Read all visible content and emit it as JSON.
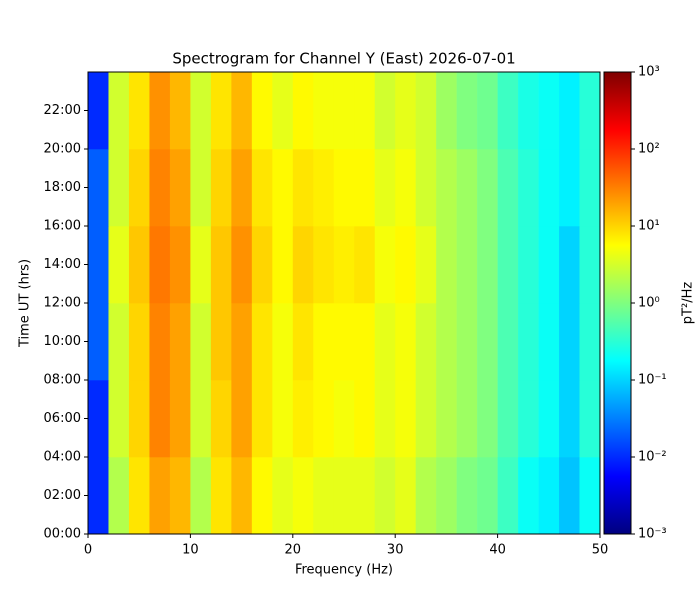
{
  "chart_data": {
    "type": "heatmap",
    "title": "Spectrogram for Channel Y (East) 2026-07-01",
    "x_label": "Frequency (Hz)",
    "y_label": "Time UT (hrs)",
    "colorbar_label": "pT²/Hz",
    "x": [
      1,
      3,
      5,
      7,
      9,
      11,
      13,
      15,
      17,
      19,
      21,
      23,
      25,
      27,
      29,
      31,
      33,
      35,
      37,
      39,
      41,
      43,
      45,
      47,
      49
    ],
    "y": [
      2,
      6,
      10,
      14,
      18,
      22
    ],
    "values": [
      [
        0.01,
        2,
        8,
        20,
        15,
        2,
        8,
        15,
        6,
        4,
        5,
        4,
        4,
        4,
        3,
        4,
        2,
        1.5,
        1,
        0.8,
        0.4,
        0.2,
        0.15,
        0.08,
        0.2
      ],
      [
        0.01,
        3,
        10,
        30,
        20,
        3,
        10,
        20,
        8,
        5,
        7,
        6,
        5,
        6,
        4,
        5,
        3,
        2,
        1.5,
        1,
        0.5,
        0.3,
        0.2,
        0.1,
        0.3
      ],
      [
        0.02,
        3,
        10,
        30,
        20,
        3,
        12,
        20,
        8,
        5,
        8,
        6,
        6,
        6,
        4,
        5,
        3,
        2,
        1.5,
        1,
        0.5,
        0.3,
        0.2,
        0.1,
        0.3
      ],
      [
        0.02,
        4,
        12,
        35,
        25,
        4,
        12,
        25,
        10,
        6,
        10,
        8,
        7,
        8,
        5,
        6,
        4,
        2,
        1.5,
        1,
        0.5,
        0.3,
        0.2,
        0.1,
        0.3
      ],
      [
        0.02,
        3,
        10,
        30,
        20,
        3,
        10,
        20,
        8,
        6,
        8,
        7,
        6,
        6,
        4,
        5,
        3,
        2,
        1.5,
        1,
        0.5,
        0.3,
        0.2,
        0.15,
        0.3
      ],
      [
        0.01,
        3,
        8,
        25,
        15,
        3,
        8,
        15,
        6,
        4,
        6,
        5,
        5,
        5,
        3,
        4,
        3,
        1.5,
        1,
        0.8,
        0.4,
        0.25,
        0.2,
        0.15,
        0.3
      ]
    ],
    "xlim": [
      0,
      50
    ],
    "xticks": [
      0,
      10,
      20,
      30,
      40,
      50
    ],
    "ylim": [
      0,
      24
    ],
    "yticks": [
      {
        "value": 0,
        "label": "00:00"
      },
      {
        "value": 2,
        "label": "02:00"
      },
      {
        "value": 4,
        "label": "04:00"
      },
      {
        "value": 6,
        "label": "06:00"
      },
      {
        "value": 8,
        "label": "08:00"
      },
      {
        "value": 10,
        "label": "10:00"
      },
      {
        "value": 12,
        "label": "12:00"
      },
      {
        "value": 14,
        "label": "14:00"
      },
      {
        "value": 16,
        "label": "16:00"
      },
      {
        "value": 18,
        "label": "18:00"
      },
      {
        "value": 20,
        "label": "20:00"
      },
      {
        "value": 22,
        "label": "22:00"
      }
    ],
    "colormap": "jet",
    "color_scale": "log",
    "clim": [
      0.001,
      1000
    ],
    "cticks": [
      {
        "value": 0.001,
        "label": "10⁻³"
      },
      {
        "value": 0.01,
        "label": "10⁻²"
      },
      {
        "value": 0.1,
        "label": "10⁻¹"
      },
      {
        "value": 1,
        "label": "10⁰"
      },
      {
        "value": 10,
        "label": "10¹"
      },
      {
        "value": 100,
        "label": "10²"
      },
      {
        "value": 1000,
        "label": "10³"
      }
    ]
  }
}
